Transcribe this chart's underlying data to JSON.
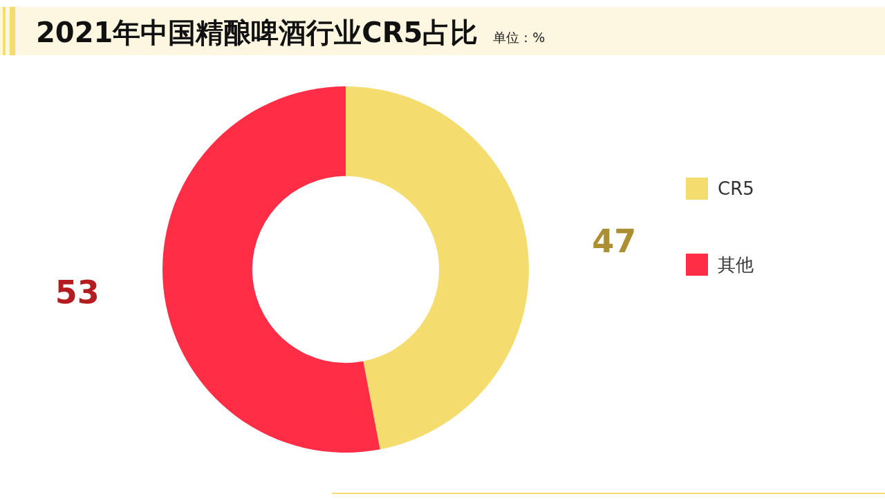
{
  "chart_data": {
    "type": "donut",
    "title": "2021年中国精酿啤酒行业CR5占比",
    "subtitle": "单位：%",
    "categories": [
      "CR5",
      "其他"
    ],
    "values": [
      47,
      53
    ],
    "colors": [
      "#f5dc6e",
      "#ff2d46"
    ],
    "data_labels": true,
    "legend": "right"
  }
}
